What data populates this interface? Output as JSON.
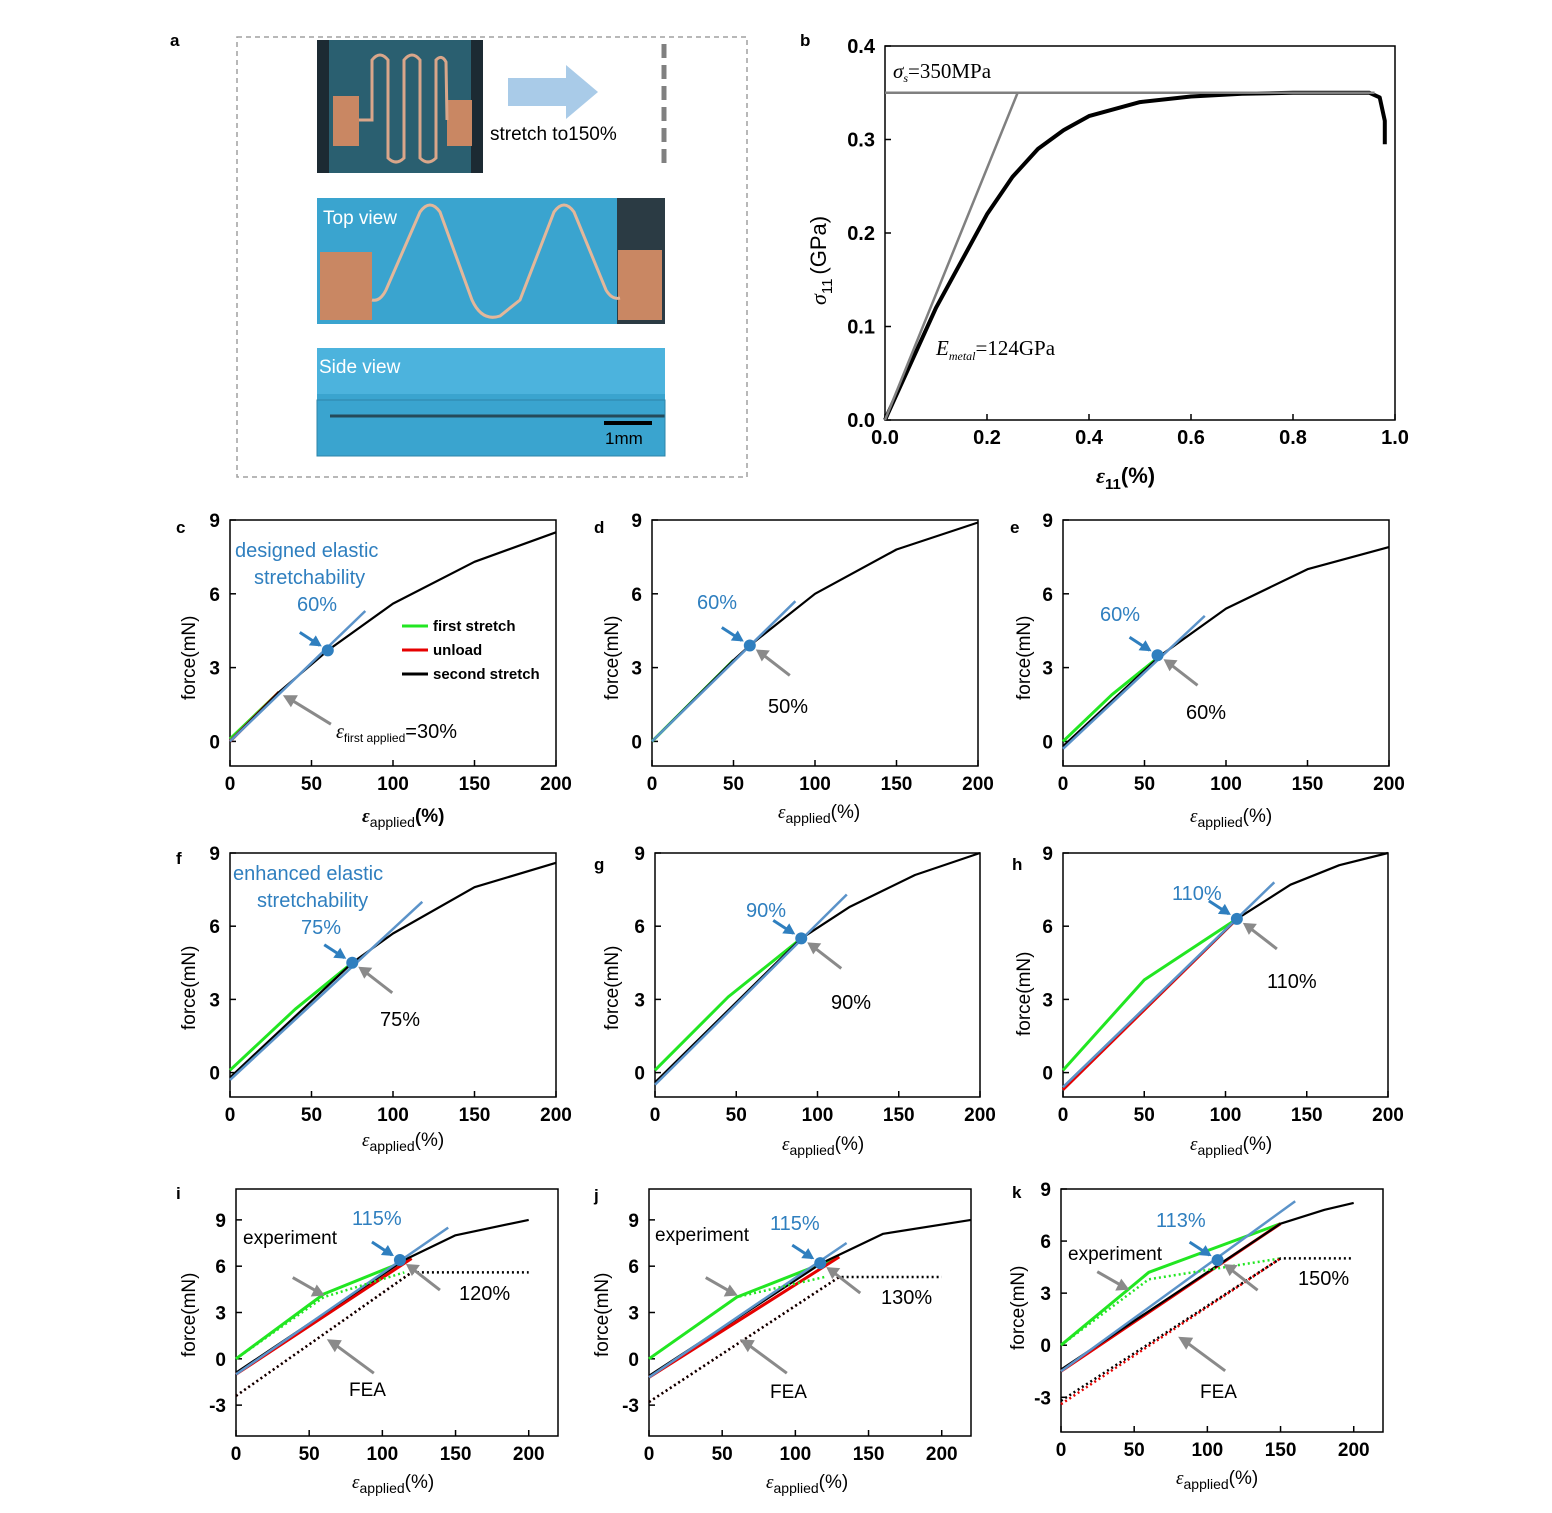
{
  "colors": {
    "first": "#22e622",
    "unload": "#e60000",
    "second": "#000000",
    "fit": "#5b93c9",
    "blue_text": "#2f7fbf",
    "gray_arrow": "#8a8a8a",
    "photo_bg": "#3aa4cf"
  },
  "panel_a": {
    "letter": "a",
    "stretch_label": "stretch to150%",
    "top_view": "Top view",
    "side_view": "Side view",
    "scale_bar": "1mm"
  },
  "panel_b": {
    "letter": "b",
    "sigma_s_sym": "σ",
    "sigma_s_sub": "s",
    "sigma_s_val": "=350MPa",
    "E_sym": "E",
    "E_sub": "metal",
    "E_val": "=124GPa",
    "ylabel_sym": "σ",
    "ylabel_sub": "11",
    "ylabel_unit": "(GPa)",
    "xlabel_sym": "ε",
    "xlabel_sub": "11",
    "xlabel_unit": "(%)"
  },
  "common": {
    "ylabel": "force(mN)",
    "xlabel_sym": "ε",
    "xlabel_sub": "applied",
    "xlabel_unit": "(%)",
    "legend": [
      "first stretch",
      "unload",
      "second stretch"
    ],
    "experiment": "experiment",
    "fea": "FEA"
  },
  "panel_c": {
    "letter": "c",
    "note1": "designed elastic",
    "note2": "stretchability",
    "blue_pct": "60%",
    "eps_sym": "ε",
    "eps_sub": "first applied",
    "eps_val": "=30%"
  },
  "panel_d": {
    "letter": "d",
    "blue_pct": "60%",
    "gray_pct": "50%"
  },
  "panel_e": {
    "letter": "e",
    "blue_pct": "60%",
    "gray_pct": "60%"
  },
  "panel_f": {
    "letter": "f",
    "note1": "enhanced elastic",
    "note2": "stretchability",
    "blue_pct": "75%",
    "gray_pct": "75%"
  },
  "panel_g": {
    "letter": "g",
    "blue_pct": "90%",
    "gray_pct": "90%"
  },
  "panel_h": {
    "letter": "h",
    "blue_pct": "110%",
    "gray_pct": "110%"
  },
  "panel_i": {
    "letter": "i",
    "blue_pct": "115%",
    "gray_pct": "120%"
  },
  "panel_j": {
    "letter": "j",
    "blue_pct": "115%",
    "gray_pct": "130%"
  },
  "panel_k": {
    "letter": "k",
    "blue_pct": "113%",
    "gray_pct": "150%"
  },
  "chart_data": [
    {
      "id": "b",
      "type": "line",
      "title": "",
      "xlabel": "ε11 (%)",
      "ylabel": "σ11 (GPa)",
      "xlim": [
        0,
        1.0
      ],
      "ylim": [
        0,
        0.4
      ],
      "xticks": [
        0.0,
        0.2,
        0.4,
        0.6,
        0.8,
        1.0
      ],
      "yticks": [
        0.0,
        0.1,
        0.2,
        0.3,
        0.4
      ],
      "xtick_labels": [
        "0.0",
        "0.2",
        "0.4",
        "0.6",
        "0.8",
        "1.0"
      ],
      "ytick_labels": [
        "0.0",
        "0.1",
        "0.2",
        "0.3",
        "0.4"
      ],
      "series": [
        {
          "name": "stress-strain",
          "x": [
            0.0,
            0.05,
            0.1,
            0.15,
            0.2,
            0.25,
            0.3,
            0.35,
            0.4,
            0.5,
            0.6,
            0.7,
            0.8,
            0.9,
            0.95,
            0.97,
            0.98,
            0.98
          ],
          "y": [
            0.0,
            0.06,
            0.12,
            0.17,
            0.22,
            0.26,
            0.29,
            0.31,
            0.325,
            0.34,
            0.346,
            0.349,
            0.35,
            0.35,
            0.35,
            0.345,
            0.32,
            0.295
          ]
        },
        {
          "name": "elastic fit",
          "x": [
            0.0,
            0.26
          ],
          "y": [
            0.0,
            0.35
          ]
        },
        {
          "name": "yield line",
          "x": [
            0.0,
            0.96
          ],
          "y": [
            0.35,
            0.35
          ]
        }
      ]
    },
    {
      "id": "c",
      "type": "line",
      "xlim": [
        0,
        200
      ],
      "ylim": [
        -1,
        9
      ],
      "xticks": [
        0,
        50,
        100,
        150,
        200
      ],
      "yticks": [
        0,
        3,
        6,
        9
      ],
      "series": [
        {
          "name": "first stretch",
          "x": [
            0,
            30
          ],
          "y": [
            0.1,
            2.0
          ]
        },
        {
          "name": "unload",
          "x": [
            0,
            30
          ],
          "y": [
            0.0,
            2.0
          ]
        },
        {
          "name": "second stretch",
          "x": [
            0,
            30,
            60,
            100,
            150,
            200
          ],
          "y": [
            0,
            2.0,
            3.7,
            5.6,
            7.3,
            8.5
          ]
        },
        {
          "name": "fit",
          "x": [
            0,
            83
          ],
          "y": [
            0,
            5.3
          ]
        }
      ],
      "marker": {
        "x": 60,
        "y": 3.7
      }
    },
    {
      "id": "d",
      "type": "line",
      "xlim": [
        0,
        200
      ],
      "ylim": [
        -1,
        9
      ],
      "xticks": [
        0,
        50,
        100,
        150,
        200
      ],
      "yticks": [
        0,
        3,
        6,
        9
      ],
      "series": [
        {
          "name": "first stretch",
          "x": [
            0,
            50
          ],
          "y": [
            0,
            3.3
          ]
        },
        {
          "name": "second stretch",
          "x": [
            0,
            50,
            60,
            100,
            150,
            200
          ],
          "y": [
            0,
            3.3,
            3.9,
            6.0,
            7.8,
            8.9
          ]
        },
        {
          "name": "fit",
          "x": [
            0,
            88
          ],
          "y": [
            0,
            5.7
          ]
        }
      ],
      "marker": {
        "x": 60,
        "y": 3.9
      }
    },
    {
      "id": "e",
      "type": "line",
      "xlim": [
        0,
        200
      ],
      "ylim": [
        -1,
        9
      ],
      "xticks": [
        0,
        50,
        100,
        150,
        200
      ],
      "yticks": [
        0,
        3,
        6,
        9
      ],
      "series": [
        {
          "name": "first stretch",
          "x": [
            0,
            30,
            60
          ],
          "y": [
            0,
            1.9,
            3.5
          ]
        },
        {
          "name": "second stretch",
          "x": [
            0,
            60,
            100,
            150,
            200
          ],
          "y": [
            -0.2,
            3.5,
            5.4,
            7.0,
            7.9
          ]
        },
        {
          "name": "fit",
          "x": [
            0,
            87
          ],
          "y": [
            -0.3,
            5.1
          ]
        }
      ],
      "marker": {
        "x": 58,
        "y": 3.5
      }
    },
    {
      "id": "f",
      "type": "line",
      "xlim": [
        0,
        200
      ],
      "ylim": [
        -1,
        9
      ],
      "xticks": [
        0,
        50,
        100,
        150,
        200
      ],
      "yticks": [
        0,
        3,
        6,
        9
      ],
      "series": [
        {
          "name": "first stretch",
          "x": [
            0,
            40,
            75
          ],
          "y": [
            0.1,
            2.6,
            4.5
          ]
        },
        {
          "name": "second stretch",
          "x": [
            0,
            75,
            100,
            150,
            200
          ],
          "y": [
            -0.2,
            4.5,
            5.7,
            7.6,
            8.6
          ]
        },
        {
          "name": "fit",
          "x": [
            0,
            118
          ],
          "y": [
            -0.3,
            7.0
          ]
        }
      ],
      "marker": {
        "x": 75,
        "y": 4.5
      }
    },
    {
      "id": "g",
      "type": "line",
      "xlim": [
        0,
        200
      ],
      "ylim": [
        -1,
        9
      ],
      "xticks": [
        0,
        50,
        100,
        150,
        200
      ],
      "yticks": [
        0,
        3,
        6,
        9
      ],
      "series": [
        {
          "name": "first stretch",
          "x": [
            0,
            45,
            90
          ],
          "y": [
            0.1,
            3.1,
            5.5
          ]
        },
        {
          "name": "second stretch",
          "x": [
            0,
            90,
            120,
            160,
            200
          ],
          "y": [
            -0.4,
            5.5,
            6.8,
            8.1,
            9.0
          ]
        },
        {
          "name": "fit",
          "x": [
            0,
            118
          ],
          "y": [
            -0.5,
            7.3
          ]
        }
      ],
      "marker": {
        "x": 90,
        "y": 5.5
      }
    },
    {
      "id": "h",
      "type": "line",
      "xlim": [
        0,
        200
      ],
      "ylim": [
        -1,
        9
      ],
      "xticks": [
        0,
        50,
        100,
        150,
        200
      ],
      "yticks": [
        0,
        3,
        6,
        9
      ],
      "series": [
        {
          "name": "first stretch",
          "x": [
            0,
            50,
            107
          ],
          "y": [
            0.1,
            3.8,
            6.3
          ]
        },
        {
          "name": "unload",
          "x": [
            0,
            107
          ],
          "y": [
            -0.7,
            6.3
          ]
        },
        {
          "name": "second stretch",
          "x": [
            0,
            107,
            140,
            170,
            200
          ],
          "y": [
            -0.6,
            6.3,
            7.7,
            8.5,
            9.0
          ]
        },
        {
          "name": "fit",
          "x": [
            0,
            130
          ],
          "y": [
            -0.6,
            7.8
          ]
        }
      ],
      "marker": {
        "x": 107,
        "y": 6.3
      }
    },
    {
      "id": "i",
      "type": "line",
      "xlim": [
        0,
        220
      ],
      "ylim": [
        -5,
        11
      ],
      "xticks": [
        0,
        50,
        100,
        150,
        200
      ],
      "yticks": [
        -3,
        0,
        3,
        6,
        9
      ],
      "series": [
        {
          "name": "first stretch",
          "x": [
            0,
            60,
            120
          ],
          "y": [
            0,
            4.2,
            6.5
          ]
        },
        {
          "name": "unload",
          "x": [
            0,
            120
          ],
          "y": [
            -1.0,
            6.5
          ]
        },
        {
          "name": "second stretch",
          "x": [
            0,
            115,
            150,
            200
          ],
          "y": [
            -0.9,
            6.4,
            8.0,
            9.0
          ]
        },
        {
          "name": "fit",
          "x": [
            0,
            145
          ],
          "y": [
            -1.0,
            8.5
          ]
        },
        {
          "name": "FEA first",
          "x": [
            0,
            60,
            115
          ],
          "y": [
            0,
            4.0,
            5.6
          ]
        },
        {
          "name": "FEA unload",
          "x": [
            0,
            120
          ],
          "y": [
            -2.4,
            5.6
          ]
        },
        {
          "name": "FEA second",
          "x": [
            0,
            120,
            200
          ],
          "y": [
            -2.4,
            5.6,
            5.6
          ]
        }
      ],
      "marker": {
        "x": 112,
        "y": 6.4
      }
    },
    {
      "id": "j",
      "type": "line",
      "xlim": [
        0,
        220
      ],
      "ylim": [
        -5,
        11
      ],
      "xticks": [
        0,
        50,
        100,
        150,
        200
      ],
      "yticks": [
        -3,
        0,
        3,
        6,
        9
      ],
      "series": [
        {
          "name": "first stretch",
          "x": [
            0,
            60,
            130
          ],
          "y": [
            0,
            4.0,
            6.6
          ]
        },
        {
          "name": "unload",
          "x": [
            0,
            130
          ],
          "y": [
            -1.2,
            6.6
          ]
        },
        {
          "name": "second stretch",
          "x": [
            0,
            118,
            160,
            220
          ],
          "y": [
            -1.1,
            6.2,
            8.1,
            9.0
          ]
        },
        {
          "name": "fit",
          "x": [
            0,
            135
          ],
          "y": [
            -1.2,
            7.5
          ]
        },
        {
          "name": "FEA first",
          "x": [
            0,
            60,
            120
          ],
          "y": [
            0,
            4.0,
            5.3
          ]
        },
        {
          "name": "FEA unload",
          "x": [
            0,
            130
          ],
          "y": [
            -2.8,
            5.3
          ]
        },
        {
          "name": "FEA second",
          "x": [
            0,
            130,
            200
          ],
          "y": [
            -2.8,
            5.3,
            5.3
          ]
        }
      ],
      "marker": {
        "x": 117,
        "y": 6.2
      }
    },
    {
      "id": "k",
      "type": "line",
      "xlim": [
        0,
        220
      ],
      "ylim": [
        -5,
        9
      ],
      "xticks": [
        0,
        50,
        100,
        150,
        200
      ],
      "yticks": [
        -3,
        0,
        3,
        6,
        9
      ],
      "series": [
        {
          "name": "first stretch",
          "x": [
            0,
            60,
            150
          ],
          "y": [
            0,
            4.2,
            7.0
          ]
        },
        {
          "name": "unload",
          "x": [
            0,
            150
          ],
          "y": [
            -1.5,
            7.0
          ]
        },
        {
          "name": "second stretch",
          "x": [
            0,
            150,
            180,
            200
          ],
          "y": [
            -1.4,
            7.0,
            7.8,
            8.2
          ]
        },
        {
          "name": "fit",
          "x": [
            0,
            160
          ],
          "y": [
            -1.5,
            8.3
          ]
        },
        {
          "name": "FEA first",
          "x": [
            0,
            60,
            150
          ],
          "y": [
            0,
            3.8,
            5.0
          ]
        },
        {
          "name": "FEA unload",
          "x": [
            0,
            150
          ],
          "y": [
            -3.4,
            5.0
          ]
        },
        {
          "name": "FEA second",
          "x": [
            0,
            150,
            200
          ],
          "y": [
            -3.2,
            5.0,
            5.0
          ]
        }
      ],
      "marker": {
        "x": 107,
        "y": 4.9
      }
    }
  ]
}
